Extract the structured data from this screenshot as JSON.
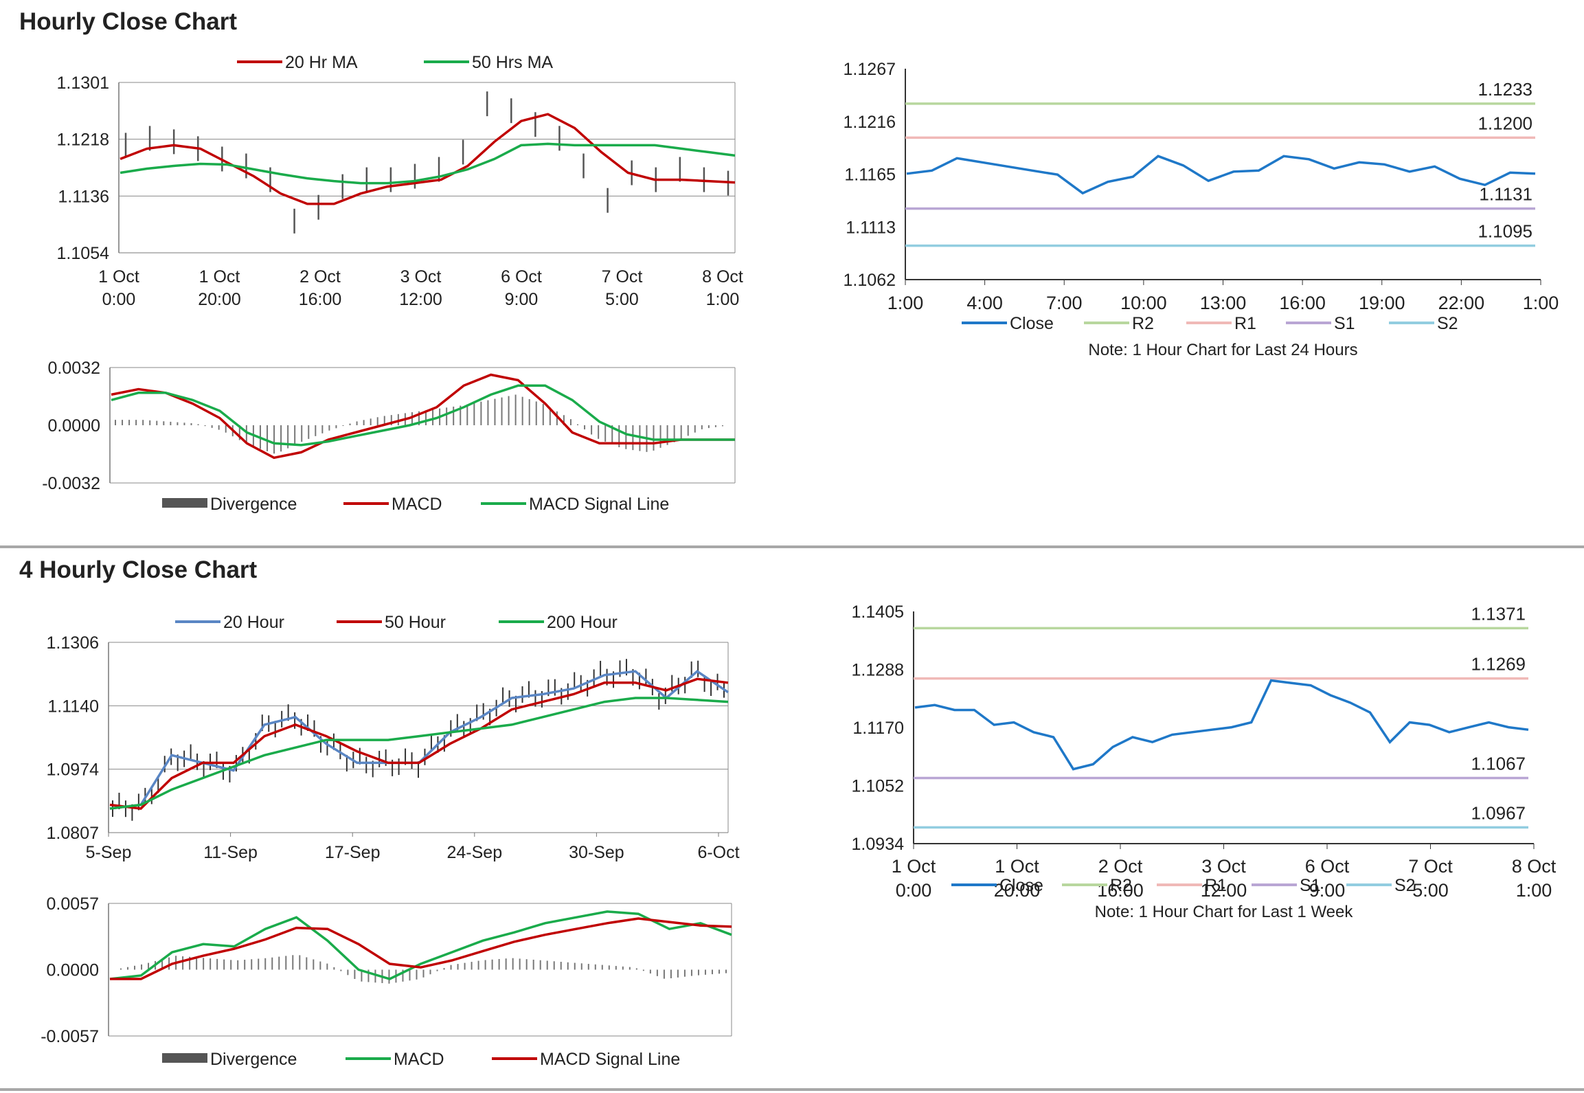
{
  "sections": [
    {
      "title": "Hourly Close Chart"
    },
    {
      "title": "4 Hourly Close Chart"
    }
  ],
  "colors": {
    "red": "#c00000",
    "green": "#1aab4b",
    "blue": "#5a86c4",
    "close": "#1f78c8",
    "r2": "#b8d79e",
    "r1": "#f0b9b7",
    "s1": "#b9a6d4",
    "s2": "#92cde0",
    "bars": "#555555"
  },
  "chart_data": [
    {
      "id": "hourly-price",
      "type": "line",
      "ylim": [
        1.1054,
        1.1301
      ],
      "yticks": [
        "1.1301",
        "1.1218",
        "1.1136",
        "1.1054"
      ],
      "xticks": [
        [
          "1 Oct",
          "0:00"
        ],
        [
          "1 Oct",
          "20:00"
        ],
        [
          "2 Oct",
          "16:00"
        ],
        [
          "3 Oct",
          "12:00"
        ],
        [
          "6 Oct",
          "9:00"
        ],
        [
          "7 Oct",
          "5:00"
        ],
        [
          "8 Oct",
          "1:00"
        ]
      ],
      "legend": "top",
      "series": [
        {
          "name": "20 Hr MA",
          "color": "red",
          "values": [
            1.119,
            1.1205,
            1.121,
            1.1205,
            1.1185,
            1.1165,
            1.114,
            1.1125,
            1.1125,
            1.114,
            1.115,
            1.1155,
            1.116,
            1.118,
            1.1215,
            1.1245,
            1.1255,
            1.1235,
            1.12,
            1.117,
            1.116,
            1.116,
            1.1158,
            1.1156
          ]
        },
        {
          "name": "50 Hrs MA",
          "color": "green",
          "values": [
            1.117,
            1.1176,
            1.118,
            1.1183,
            1.1182,
            1.1175,
            1.1168,
            1.1162,
            1.1158,
            1.1155,
            1.1155,
            1.1158,
            1.1165,
            1.1175,
            1.119,
            1.121,
            1.1212,
            1.121,
            1.121,
            1.121,
            1.121,
            1.1205,
            1.12,
            1.1195
          ]
        }
      ],
      "ohlc_close": [
        1.121,
        1.122,
        1.1215,
        1.1205,
        1.119,
        1.118,
        1.116,
        1.11,
        1.112,
        1.115,
        1.116,
        1.116,
        1.1165,
        1.1175,
        1.12,
        1.127,
        1.126,
        1.124,
        1.122,
        1.118,
        1.113,
        1.117,
        1.116,
        1.1175,
        1.116,
        1.1155
      ]
    },
    {
      "id": "hourly-macd",
      "type": "line",
      "ylim": [
        -0.0032,
        0.0032
      ],
      "yticks": [
        "0.0032",
        "0.0000",
        "-0.0032"
      ],
      "legend": "bottom",
      "series": [
        {
          "name": "Divergence",
          "color": "bars",
          "values": [
            0.0003,
            0.0003,
            0.0002,
            0.0001,
            -0.0003,
            -0.0011,
            -0.0016,
            -0.0009,
            -0.0003,
            0.0002,
            0.0005,
            0.0007,
            0.0009,
            0.0011,
            0.0014,
            0.0017,
            0.0012,
            0.0004,
            -0.0007,
            -0.0013,
            -0.0015,
            -0.0009,
            -0.0002,
            0.0
          ]
        },
        {
          "name": "MACD",
          "color": "red",
          "values": [
            0.0017,
            0.002,
            0.0018,
            0.0012,
            0.0004,
            -0.001,
            -0.0018,
            -0.0015,
            -0.0008,
            -0.0004,
            0.0,
            0.0004,
            0.001,
            0.0022,
            0.0028,
            0.0025,
            0.0012,
            -0.0004,
            -0.001,
            -0.001,
            -0.001,
            -0.0008,
            -0.0008,
            -0.0008
          ]
        },
        {
          "name": "MACD Signal Line",
          "color": "green",
          "values": [
            0.0014,
            0.0018,
            0.0018,
            0.0014,
            0.0008,
            -0.0004,
            -0.001,
            -0.0011,
            -0.0009,
            -0.0006,
            -0.0003,
            0.0,
            0.0004,
            0.001,
            0.0017,
            0.0022,
            0.0022,
            0.0014,
            0.0002,
            -0.0005,
            -0.0008,
            -0.0008,
            -0.0008,
            -0.0008
          ]
        }
      ]
    },
    {
      "id": "hourly-24h",
      "type": "line",
      "ylim": [
        1.1062,
        1.1267
      ],
      "yticks": [
        "1.1267",
        "1.1216",
        "1.1165",
        "1.1113",
        "1.1062"
      ],
      "xticks": [
        "1:00",
        "4:00",
        "7:00",
        "10:00",
        "13:00",
        "16:00",
        "19:00",
        "22:00",
        "1:00"
      ],
      "legend": "bottom",
      "note": "Note: 1 Hour Chart for Last 24 Hours",
      "series": [
        {
          "name": "Close",
          "color": "close",
          "values": [
            1.1165,
            1.1168,
            1.118,
            1.1176,
            1.1172,
            1.1168,
            1.1164,
            1.1146,
            1.1157,
            1.1162,
            1.1182,
            1.1173,
            1.1158,
            1.1167,
            1.1168,
            1.1182,
            1.1179,
            1.117,
            1.1176,
            1.1174,
            1.1167,
            1.1172,
            1.116,
            1.1154,
            1.1166,
            1.1165
          ]
        },
        {
          "name": "R2",
          "color": "r2",
          "level": 1.1233
        },
        {
          "name": "R1",
          "color": "r1",
          "level": 1.12
        },
        {
          "name": "S1",
          "color": "s1",
          "level": 1.1131
        },
        {
          "name": "S2",
          "color": "s2",
          "level": 1.1095
        }
      ],
      "level_labels": [
        "1.1233",
        "1.1200",
        "1.1131",
        "1.1095"
      ]
    },
    {
      "id": "4h-price",
      "type": "line",
      "ylim": [
        1.0807,
        1.1306
      ],
      "yticks": [
        "1.1306",
        "1.1140",
        "1.0974",
        "1.0807"
      ],
      "xticks": [
        "5-Sep",
        "11-Sep",
        "17-Sep",
        "24-Sep",
        "30-Sep",
        "6-Oct"
      ],
      "legend": "top",
      "series": [
        {
          "name": "20 Hour",
          "color": "blue",
          "values": [
            1.087,
            1.088,
            1.101,
            1.099,
            1.097,
            1.109,
            1.111,
            1.104,
            1.099,
            1.099,
            1.099,
            1.107,
            1.111,
            1.116,
            1.117,
            1.1185,
            1.122,
            1.123,
            1.116,
            1.123,
            1.1175
          ]
        },
        {
          "name": "50 Hour",
          "color": "red",
          "values": [
            1.088,
            1.087,
            1.095,
            1.099,
            1.099,
            1.106,
            1.109,
            1.106,
            1.102,
            1.099,
            1.099,
            1.104,
            1.108,
            1.113,
            1.115,
            1.117,
            1.12,
            1.12,
            1.118,
            1.121,
            1.12
          ]
        },
        {
          "name": "200 Hour",
          "color": "green",
          "values": [
            1.087,
            1.088,
            1.092,
            1.095,
            1.098,
            1.101,
            1.103,
            1.105,
            1.105,
            1.105,
            1.106,
            1.107,
            1.108,
            1.109,
            1.111,
            1.113,
            1.115,
            1.116,
            1.116,
            1.1155,
            1.115
          ]
        }
      ]
    },
    {
      "id": "4h-macd",
      "type": "line",
      "ylim": [
        -0.0057,
        0.0057
      ],
      "yticks": [
        "0.0057",
        "0.0000",
        "-0.0057"
      ],
      "legend": "bottom",
      "series": [
        {
          "name": "Divergence",
          "color": "bars",
          "values": [
            0.0,
            0.0005,
            0.0012,
            0.001,
            0.0008,
            0.001,
            0.0013,
            0.0005,
            -0.001,
            -0.0012,
            -0.0008,
            0.0004,
            0.0008,
            0.001,
            0.0008,
            0.0006,
            0.0004,
            0.0002,
            -0.0008,
            -0.0005,
            -0.0003
          ]
        },
        {
          "name": "MACD",
          "color": "green",
          "values": [
            -0.0008,
            -0.0005,
            0.0015,
            0.0022,
            0.002,
            0.0035,
            0.0045,
            0.0025,
            0.0,
            -0.0008,
            0.0005,
            0.0015,
            0.0025,
            0.0032,
            0.004,
            0.0045,
            0.005,
            0.0048,
            0.0035,
            0.004,
            0.003
          ]
        },
        {
          "name": "MACD Signal Line",
          "color": "red",
          "values": [
            -0.0008,
            -0.0008,
            0.0005,
            0.0012,
            0.0018,
            0.0026,
            0.0036,
            0.0035,
            0.0022,
            0.0005,
            0.0002,
            0.0008,
            0.0016,
            0.0024,
            0.003,
            0.0035,
            0.004,
            0.0044,
            0.0041,
            0.0038,
            0.0037
          ]
        }
      ]
    },
    {
      "id": "4h-week",
      "type": "line",
      "ylim": [
        1.0934,
        1.1405
      ],
      "yticks": [
        "1.1405",
        "1.1288",
        "1.1170",
        "1.1052",
        "1.0934"
      ],
      "xticks": [
        [
          "1 Oct",
          "0:00"
        ],
        [
          "1 Oct",
          "20:00"
        ],
        [
          "2 Oct",
          "16:00"
        ],
        [
          "3 Oct",
          "12:00"
        ],
        [
          "6 Oct",
          "9:00"
        ],
        [
          "7 Oct",
          "5:00"
        ],
        [
          "8 Oct",
          "1:00"
        ]
      ],
      "legend": "bottom",
      "note": "Note: 1 Hour Chart for  Last 1 Week",
      "series": [
        {
          "name": "Close",
          "color": "close",
          "values": [
            1.121,
            1.1215,
            1.1205,
            1.1205,
            1.1175,
            1.118,
            1.116,
            1.115,
            1.1085,
            1.1095,
            1.113,
            1.115,
            1.114,
            1.1155,
            1.116,
            1.1165,
            1.117,
            1.118,
            1.1265,
            1.126,
            1.1255,
            1.1235,
            1.122,
            1.12,
            1.114,
            1.118,
            1.1175,
            1.116,
            1.117,
            1.118,
            1.117,
            1.1165
          ]
        },
        {
          "name": "R2",
          "color": "r2",
          "level": 1.1371
        },
        {
          "name": "R1",
          "color": "r1",
          "level": 1.1269
        },
        {
          "name": "S1",
          "color": "s1",
          "level": 1.1067
        },
        {
          "name": "S2",
          "color": "s2",
          "level": 1.0967
        }
      ],
      "level_labels": [
        "1.1371",
        "1.1269",
        "1.1067",
        "1.0967"
      ]
    }
  ]
}
